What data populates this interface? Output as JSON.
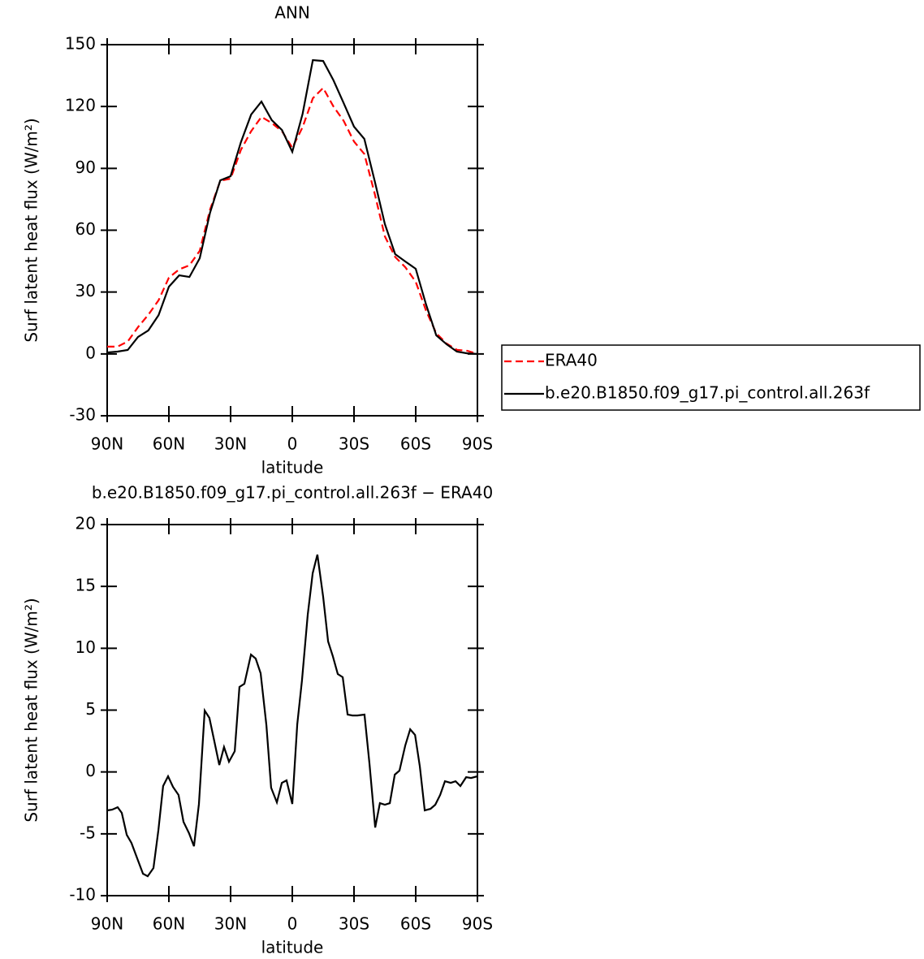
{
  "chart_data": [
    {
      "type": "line",
      "title": "ANN",
      "xlabel": "latitude",
      "ylabel": "Surf latent heat flux (W/m²)",
      "x": [
        90,
        85,
        80,
        75,
        70,
        65,
        60,
        55,
        50,
        45,
        40,
        35,
        30,
        25,
        20,
        15,
        10,
        5,
        0,
        -5,
        -10,
        -15,
        -20,
        -25,
        -30,
        -35,
        -40,
        -45,
        -50,
        -55,
        -60,
        -65,
        -70,
        -75,
        -80,
        -85,
        -90
      ],
      "series": [
        {
          "name": "ERA40",
          "color": "#ff0000",
          "style": "dashed",
          "values": [
            3.5,
            3.5,
            6,
            13,
            19,
            26,
            37,
            41,
            43,
            50,
            70,
            84,
            85,
            99,
            108,
            115,
            112,
            108,
            100,
            110,
            124,
            129,
            120,
            113,
            103,
            97,
            78,
            57,
            47,
            42,
            35,
            21,
            10,
            5,
            2,
            1.5,
            0
          ]
        },
        {
          "name": "b.e20.B1850.f09_g17.pi_control.all.263f",
          "color": "#000000",
          "style": "solid",
          "values": [
            0.7,
            1.1,
            1.9,
            8.2,
            11.4,
            18.8,
            32.6,
            38.1,
            37.3,
            46.4,
            68.5,
            84.2,
            86.2,
            102.7,
            116.1,
            122.4,
            113.4,
            108.6,
            98,
            116.5,
            142.5,
            142.1,
            132.7,
            121.6,
            110.2,
            104.3,
            84.2,
            63,
            48.4,
            44.8,
            41.3,
            24,
            9,
            4.7,
            1.1,
            0.3,
            0
          ]
        }
      ],
      "xlim": [
        90,
        -90
      ],
      "xticks": [
        {
          "value": 90,
          "label": "90N"
        },
        {
          "value": 60,
          "label": "60N"
        },
        {
          "value": 30,
          "label": "30N"
        },
        0,
        {
          "value": -30,
          "label": "30S"
        },
        {
          "value": -60,
          "label": "60S"
        },
        {
          "value": -90,
          "label": "90S"
        }
      ],
      "ylim": [
        -30,
        150
      ],
      "yticks": [
        -30,
        0,
        30,
        60,
        90,
        120,
        150
      ],
      "legend": "right"
    },
    {
      "type": "line",
      "title": "b.e20.B1850.f09_g17.pi_control.all.263f − ERA40",
      "xlabel": "latitude",
      "ylabel": "Surf latent heat flux (W/m²)",
      "x": [
        90,
        87.6,
        84.9,
        82.9,
        80.5,
        78.2,
        75.4,
        72.6,
        70.3,
        67.5,
        65.1,
        62.8,
        60.4,
        58.0,
        55.3,
        52.9,
        50.2,
        47.8,
        45.4,
        42.6,
        40.3,
        37.9,
        35.5,
        33.2,
        30.8,
        28.0,
        25.7,
        23.3,
        20.1,
        17.8,
        15.4,
        12.6,
        10.3,
        7.5,
        5.1,
        2.8,
        0,
        -2.4,
        -4.7,
        -7.5,
        -9.9,
        -12.2,
        -15.0,
        -17.4,
        -19.7,
        -22.1,
        -24.5,
        -26.9,
        -29.2,
        -31.6,
        -35.1,
        -37.5,
        -40.3,
        -42.6,
        -45.0,
        -47.4,
        -49.8,
        -52.1,
        -54.9,
        -57.3,
        -59.7,
        -62.0,
        -64.4,
        -67.2,
        -69.5,
        -71.9,
        -74.2,
        -77.0,
        -79.4,
        -81.7,
        -84.5,
        -86.9,
        -90
      ],
      "series": [
        {
          "color": "#000000",
          "style": "solid",
          "values": [
            -3.11,
            -3.05,
            -2.85,
            -3.31,
            -5.08,
            -5.74,
            -6.99,
            -8.23,
            -8.43,
            -7.77,
            -4.69,
            -1.14,
            -0.35,
            -1.21,
            -1.86,
            -4.03,
            -4.95,
            -6.0,
            -2.59,
            4.96,
            4.37,
            2.47,
            0.56,
            2.01,
            0.83,
            1.68,
            6.87,
            7.13,
            9.49,
            9.17,
            7.98,
            3.78,
            -1.27,
            -2.46,
            -0.88,
            -0.68,
            -2.59,
            3.85,
            7.39,
            12.71,
            16.06,
            17.57,
            14.16,
            10.55,
            9.36,
            7.92,
            7.66,
            4.64,
            4.57,
            4.57,
            4.64,
            0.7,
            -4.49,
            -2.52,
            -2.65,
            -2.52,
            -0.22,
            0.11,
            2.14,
            3.45,
            2.99,
            0.43,
            -3.11,
            -2.98,
            -2.65,
            -1.86,
            -0.75,
            -0.88,
            -0.75,
            -1.14,
            -0.42,
            -0.49,
            -0.35
          ]
        }
      ],
      "xlim": [
        90,
        -90
      ],
      "xticks": [
        {
          "value": 90,
          "label": "90N"
        },
        {
          "value": 60,
          "label": "60N"
        },
        {
          "value": 30,
          "label": "30N"
        },
        0,
        {
          "value": -30,
          "label": "30S"
        },
        {
          "value": -60,
          "label": "60S"
        },
        {
          "value": -90,
          "label": "90S"
        }
      ],
      "ylim": [
        -10,
        20
      ],
      "yticks": [
        -10,
        -5,
        0,
        5,
        10,
        15,
        20
      ]
    }
  ]
}
